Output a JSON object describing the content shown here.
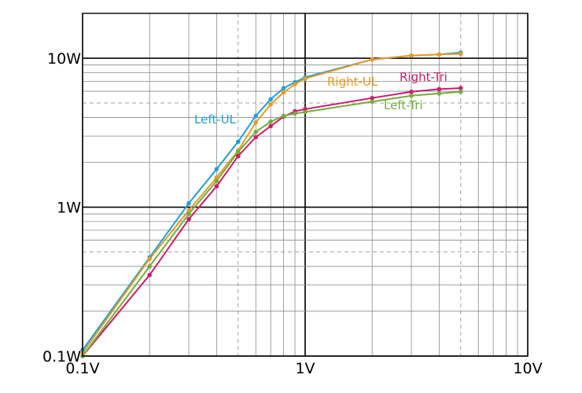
{
  "chart_data": {
    "type": "line",
    "title": "",
    "xlabel": "",
    "ylabel": "",
    "x_scale": "log",
    "y_scale": "log",
    "xlim": [
      0.1,
      10
    ],
    "ylim": [
      0.1,
      20
    ],
    "grid": true,
    "x_ticks": [
      {
        "value": 0.1,
        "label": "0.1V"
      },
      {
        "value": 1,
        "label": "1V"
      },
      {
        "value": 10,
        "label": "10V"
      }
    ],
    "y_ticks": [
      {
        "value": 0.1,
        "label": "0.1W"
      },
      {
        "value": 1,
        "label": "1W"
      },
      {
        "value": 10,
        "label": "10W"
      }
    ],
    "series": [
      {
        "name": "Left-UL",
        "color": "#1f9fd8",
        "x": [
          0.1,
          0.2,
          0.3,
          0.4,
          0.5,
          0.6,
          0.7,
          0.8,
          0.9,
          1,
          2,
          3,
          4,
          5
        ],
        "y": [
          0.11,
          0.46,
          1.06,
          1.8,
          2.75,
          4.1,
          5.3,
          6.3,
          6.9,
          7.45,
          9.8,
          10.4,
          10.6,
          10.9
        ]
      },
      {
        "name": "Right-UL",
        "color": "#e89a22",
        "x": [
          0.1,
          0.2,
          0.3,
          0.4,
          0.5,
          0.6,
          0.7,
          0.8,
          0.9,
          1,
          2,
          3,
          4,
          5
        ],
        "y": [
          0.105,
          0.45,
          0.95,
          1.58,
          2.4,
          3.7,
          4.9,
          5.9,
          6.7,
          7.3,
          9.8,
          10.4,
          10.6,
          10.7
        ]
      },
      {
        "name": "Right-Tri",
        "color": "#d01a6e",
        "x": [
          0.1,
          0.2,
          0.3,
          0.4,
          0.5,
          0.6,
          0.7,
          0.8,
          0.9,
          1,
          2,
          3,
          4,
          5
        ],
        "y": [
          0.1,
          0.35,
          0.83,
          1.38,
          2.2,
          2.95,
          3.5,
          4.05,
          4.4,
          4.55,
          5.4,
          5.95,
          6.2,
          6.3
        ]
      },
      {
        "name": "Left-Tri",
        "color": "#72ad3d",
        "x": [
          0.1,
          0.2,
          0.3,
          0.4,
          0.5,
          0.6,
          0.7,
          0.8,
          0.9,
          1,
          2,
          3,
          4,
          5
        ],
        "y": [
          0.1,
          0.4,
          0.9,
          1.5,
          2.35,
          3.2,
          3.75,
          4.1,
          4.25,
          4.35,
          5.1,
          5.6,
          5.8,
          5.95
        ]
      }
    ]
  }
}
